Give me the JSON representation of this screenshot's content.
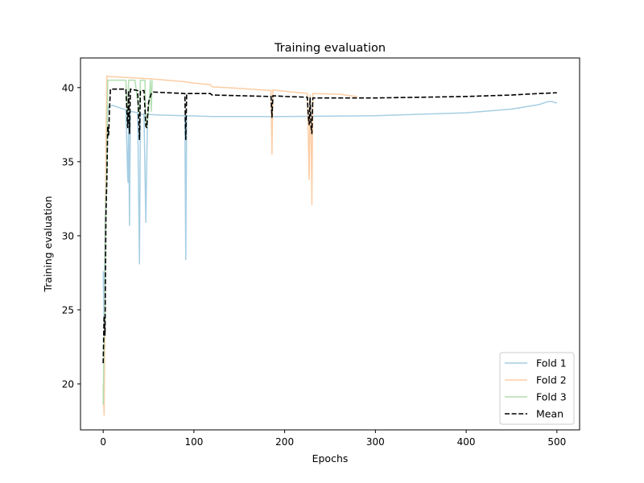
{
  "chart_data": {
    "type": "line",
    "title": "Training evaluation",
    "xlabel": "Epochs",
    "ylabel": "Training evaluation",
    "xlim": [
      -25,
      525
    ],
    "ylim": [
      16.9,
      42
    ],
    "xticks": [
      0,
      100,
      200,
      300,
      400,
      500
    ],
    "yticks": [
      20,
      25,
      30,
      35,
      40
    ],
    "legend": "lower-right",
    "grid": false,
    "series": [
      {
        "name": "Fold 1",
        "color": "#a6cee3",
        "style": "solid",
        "points": [
          [
            0,
            27.6
          ],
          [
            1,
            24.0
          ],
          [
            2,
            30.5
          ],
          [
            3,
            34.8
          ],
          [
            4,
            36.9
          ],
          [
            5,
            38.3
          ],
          [
            6,
            38.7
          ],
          [
            10,
            38.8
          ],
          [
            20,
            38.6
          ],
          [
            25,
            38.5
          ],
          [
            27,
            34.0
          ],
          [
            27.5,
            33.6
          ],
          [
            28,
            38.4
          ],
          [
            29,
            30.7
          ],
          [
            30,
            38.4
          ],
          [
            38,
            38.3
          ],
          [
            40,
            28.1
          ],
          [
            41,
            38.2
          ],
          [
            45,
            38.2
          ],
          [
            47,
            30.9
          ],
          [
            48,
            35.0
          ],
          [
            49,
            38.2
          ],
          [
            60,
            38.15
          ],
          [
            90,
            38.1
          ],
          [
            91,
            28.4
          ],
          [
            92,
            38.1
          ],
          [
            120,
            38.05
          ],
          [
            200,
            38.05
          ],
          [
            300,
            38.1
          ],
          [
            400,
            38.3
          ],
          [
            450,
            38.55
          ],
          [
            480,
            38.85
          ],
          [
            490,
            39.05
          ],
          [
            495,
            39.05
          ],
          [
            500,
            38.95
          ]
        ]
      },
      {
        "name": "Fold 2",
        "color": "#fdcda4",
        "style": "solid",
        "points": [
          [
            0,
            20.0
          ],
          [
            1,
            17.9
          ],
          [
            2,
            25.0
          ],
          [
            3,
            35.2
          ],
          [
            4,
            40.8
          ],
          [
            5,
            40.75
          ],
          [
            20,
            40.7
          ],
          [
            50,
            40.6
          ],
          [
            90,
            40.4
          ],
          [
            100,
            40.3
          ],
          [
            118,
            40.2
          ],
          [
            120,
            40.05
          ],
          [
            150,
            39.95
          ],
          [
            185,
            39.8
          ],
          [
            186,
            35.5
          ],
          [
            187,
            39.85
          ],
          [
            200,
            39.75
          ],
          [
            225,
            39.6
          ],
          [
            226,
            36.6
          ],
          [
            227,
            33.8
          ],
          [
            228,
            39.5
          ],
          [
            229,
            37.3
          ],
          [
            230,
            32.1
          ],
          [
            231,
            39.6
          ],
          [
            260,
            39.55
          ],
          [
            280,
            39.4
          ]
        ]
      },
      {
        "name": "Fold 3",
        "color": "#b2dfb0",
        "style": "solid",
        "points": [
          [
            0,
            18.6
          ],
          [
            1,
            23.3
          ],
          [
            2,
            24.5
          ],
          [
            3,
            32.0
          ],
          [
            4,
            34.4
          ],
          [
            5,
            40.5
          ],
          [
            10,
            40.5
          ],
          [
            25,
            40.5
          ],
          [
            27,
            37.6
          ],
          [
            28,
            40.5
          ],
          [
            35,
            40.5
          ],
          [
            40,
            38.1
          ],
          [
            41,
            40.5
          ],
          [
            46,
            40.5
          ],
          [
            47,
            37.5
          ],
          [
            48,
            37.3
          ],
          [
            50,
            38.4
          ],
          [
            52,
            40.5
          ],
          [
            53,
            38.4
          ],
          [
            54,
            40.5
          ]
        ]
      },
      {
        "name": "Mean",
        "color": "#000000",
        "style": "dashed",
        "points": [
          [
            0,
            21.4
          ],
          [
            1,
            24.6
          ],
          [
            2,
            23.3
          ],
          [
            3,
            31.2
          ],
          [
            4,
            33.7
          ],
          [
            5,
            37.4
          ],
          [
            6,
            36.8
          ],
          [
            7,
            38.6
          ],
          [
            8,
            39.9
          ],
          [
            15,
            39.9
          ],
          [
            25,
            39.9
          ],
          [
            27,
            37.3
          ],
          [
            28,
            39.8
          ],
          [
            29,
            36.9
          ],
          [
            30,
            39.9
          ],
          [
            38,
            39.8
          ],
          [
            40,
            36.5
          ],
          [
            41,
            39.8
          ],
          [
            45,
            39.8
          ],
          [
            47,
            37.4
          ],
          [
            48,
            37.3
          ],
          [
            50,
            39.0
          ],
          [
            53,
            39.6
          ],
          [
            55,
            39.7
          ],
          [
            90,
            39.6
          ],
          [
            91,
            36.5
          ],
          [
            92,
            39.6
          ],
          [
            118,
            39.6
          ],
          [
            120,
            39.5
          ],
          [
            185,
            39.4
          ],
          [
            186,
            38.0
          ],
          [
            187,
            39.45
          ],
          [
            200,
            39.4
          ],
          [
            225,
            39.35
          ],
          [
            226,
            38.1
          ],
          [
            227,
            37.5
          ],
          [
            228,
            39.3
          ],
          [
            229,
            37.4
          ],
          [
            230,
            36.9
          ],
          [
            231,
            39.3
          ],
          [
            260,
            39.3
          ],
          [
            300,
            39.3
          ],
          [
            400,
            39.4
          ],
          [
            450,
            39.5
          ],
          [
            480,
            39.6
          ],
          [
            500,
            39.65
          ]
        ]
      }
    ]
  }
}
